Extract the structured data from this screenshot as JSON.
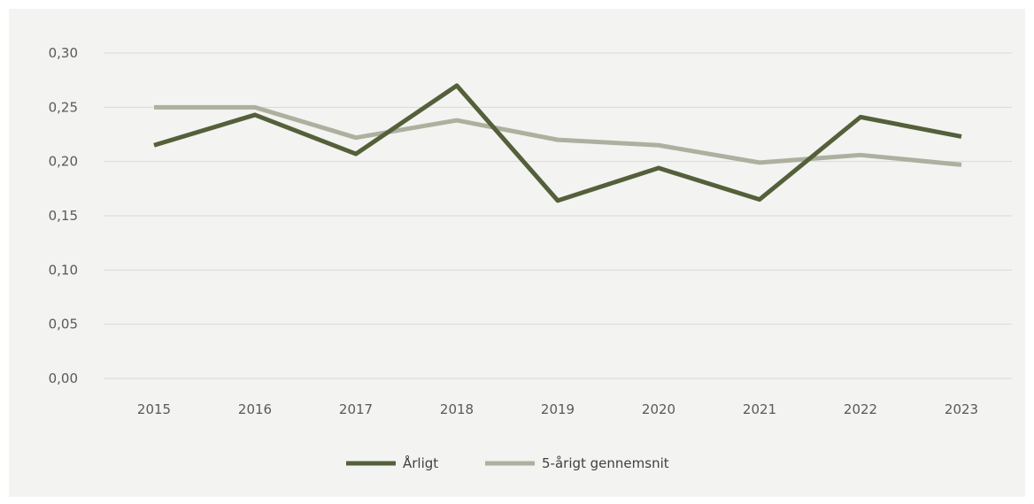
{
  "chart_data": {
    "type": "line",
    "x": [
      "2015",
      "2016",
      "2017",
      "2018",
      "2019",
      "2020",
      "2021",
      "2022",
      "2023"
    ],
    "ylim": [
      0,
      0.3
    ],
    "yticks": [
      "0,00",
      "0,05",
      "0,10",
      "0,15",
      "0,20",
      "0,25",
      "0,30"
    ],
    "ytick_values": [
      0,
      0.05,
      0.1,
      0.15,
      0.2,
      0.25,
      0.3
    ],
    "grid": true,
    "legend_position": "bottom",
    "series": [
      {
        "name": "Årligt",
        "color": "#53603a",
        "values": [
          0.215,
          0.243,
          0.207,
          0.27,
          0.164,
          0.194,
          0.165,
          0.241,
          0.223
        ]
      },
      {
        "name": "5-årigt gennemsnit",
        "color": "#aeb09f",
        "values": [
          0.25,
          0.25,
          0.222,
          0.238,
          0.22,
          0.215,
          0.199,
          0.206,
          0.197
        ]
      }
    ]
  }
}
